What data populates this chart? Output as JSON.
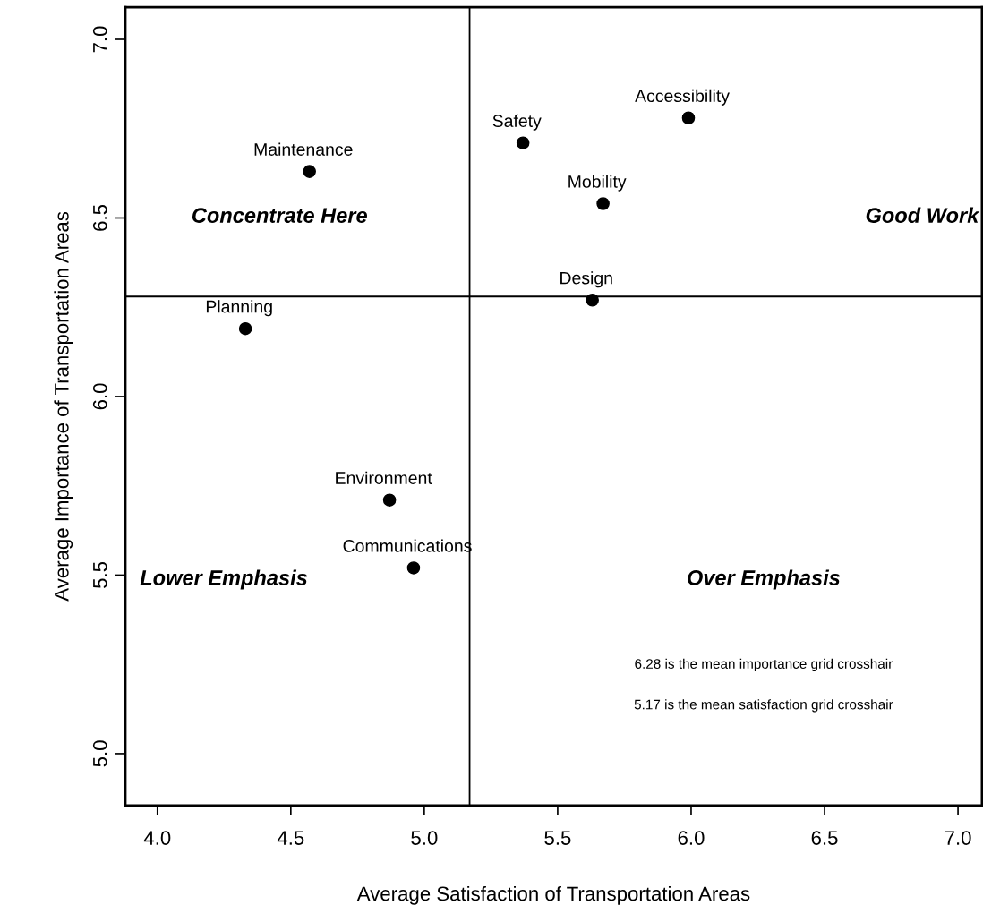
{
  "chart_data": {
    "type": "scatter",
    "xlabel": "Average Satisfaction of Transportation Areas",
    "ylabel": "Average Importance of Transportation Areas",
    "series": [
      {
        "name": "Maintenance",
        "color": "#000000",
        "x": [
          4.57
        ],
        "values": [
          6.63
        ]
      },
      {
        "name": "Safety",
        "color": "#000000",
        "x": [
          5.37
        ],
        "values": [
          6.71
        ]
      },
      {
        "name": "Accessibility",
        "color": "#000000",
        "x": [
          5.99
        ],
        "values": [
          6.78
        ]
      },
      {
        "name": "Mobility",
        "color": "#000000",
        "x": [
          5.67
        ],
        "values": [
          6.54
        ]
      },
      {
        "name": "Design",
        "color": "#000000",
        "x": [
          5.63
        ],
        "values": [
          6.27
        ]
      },
      {
        "name": "Planning",
        "color": "#000000",
        "x": [
          4.33
        ],
        "values": [
          6.19
        ]
      },
      {
        "name": "Environment",
        "color": "#000000",
        "x": [
          4.87
        ],
        "values": [
          5.71
        ]
      },
      {
        "name": "Communications",
        "color": "#000000",
        "x": [
          4.96
        ],
        "values": [
          5.52
        ]
      }
    ],
    "ref_lines": [
      {
        "axis": "y",
        "value": 6.28,
        "color": "#000000"
      },
      {
        "axis": "x",
        "value": 5.17,
        "color": "#000000"
      }
    ],
    "annotations": [
      "Concentrate Here",
      "Good Work",
      "Lower Emphasis",
      "Over Emphasis",
      "6.28 is the mean importance grid crosshair",
      "5.17 is the mean satisfaction grid crosshair"
    ],
    "xlim": [
      3.88,
      7.09
    ],
    "ylim": [
      4.855,
      7.09
    ],
    "xticks": [
      {
        "value": 4,
        "label": "4.0"
      },
      4.5,
      {
        "value": 5,
        "label": "5.0"
      },
      5.5,
      {
        "value": 6,
        "label": "6.0"
      },
      6.5,
      {
        "value": 7,
        "label": "7.0"
      }
    ],
    "yticks": [
      {
        "value": 5,
        "label": "5.0"
      },
      5.5,
      {
        "value": 6,
        "label": "6.0"
      },
      6.5,
      {
        "value": 7,
        "label": "7.0"
      }
    ],
    "marker": "circle",
    "grid": false,
    "legend": false
  }
}
